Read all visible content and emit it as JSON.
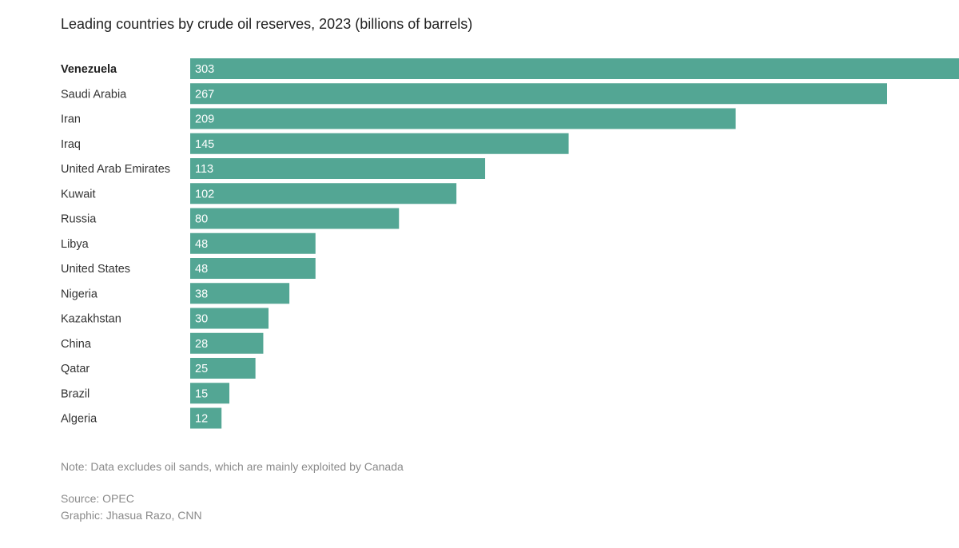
{
  "chart_data": {
    "type": "bar",
    "orientation": "horizontal",
    "title": "Leading countries by crude oil reserves, 2023 (billions of barrels)",
    "categories": [
      "Venezuela",
      "Saudi Arabia",
      "Iran",
      "Iraq",
      "United Arab Emirates",
      "Kuwait",
      "Russia",
      "Libya",
      "United States",
      "Nigeria",
      "Kazakhstan",
      "China",
      "Qatar",
      "Brazil",
      "Algeria"
    ],
    "values": [
      303,
      267,
      209,
      145,
      113,
      102,
      80,
      48,
      48,
      38,
      30,
      28,
      25,
      15,
      12
    ],
    "highlighted_category": "Venezuela",
    "bar_color": "#53a694",
    "grid": false,
    "data_labels": true
  },
  "footer": {
    "note": "Note: Data excludes oil sands, which are mainly exploited by Canada",
    "source": "Source: OPEC",
    "credit": "Graphic: Jhasua Razo, CNN"
  }
}
